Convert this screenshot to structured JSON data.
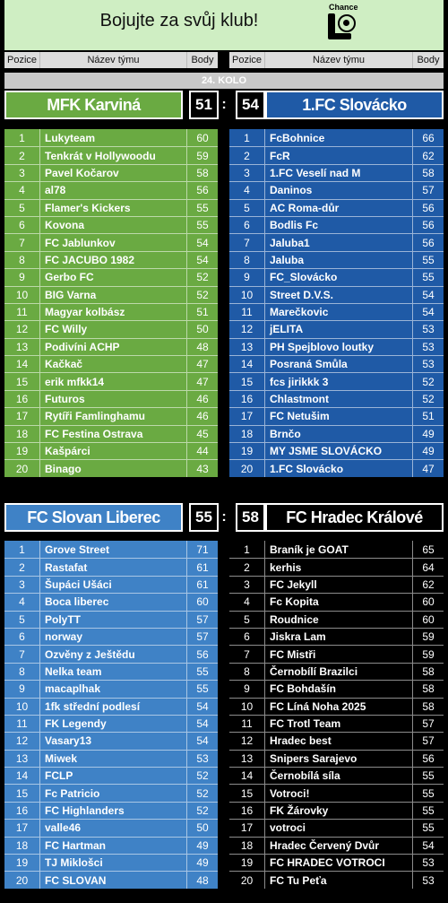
{
  "banner": {
    "text": "Bojujte za svůj klub!",
    "logo_word": "Chance"
  },
  "headers": {
    "pos": "Pozice",
    "name": "Název týmu",
    "pts": "Body"
  },
  "round_label": "24. KOLO",
  "colors": {
    "karvina": "#6aaa42",
    "slovacko": "#1f5aa6",
    "liberec": "#3f82c6",
    "hradec": "#000000"
  },
  "matches": [
    {
      "home": {
        "name": "MFK Karviná",
        "score": "51"
      },
      "away": {
        "name": "1.FC Slovácko",
        "score": "54"
      },
      "home_rows": [
        [
          "1",
          "Lukyteam",
          "60"
        ],
        [
          "2",
          "Tenkrát v Hollywoodu",
          "59"
        ],
        [
          "3",
          "Pavel Kočarov",
          "58"
        ],
        [
          "4",
          "al78",
          "56"
        ],
        [
          "5",
          "Flamer's Kickers",
          "55"
        ],
        [
          "6",
          "Kovona",
          "55"
        ],
        [
          "7",
          "FC Jablunkov",
          "54"
        ],
        [
          "8",
          "FC JACUBO 1982",
          "54"
        ],
        [
          "9",
          "Gerbo FC",
          "52"
        ],
        [
          "10",
          "BIG Varna",
          "52"
        ],
        [
          "11",
          "Magyar kolbász",
          "51"
        ],
        [
          "12",
          "FC Willy",
          "50"
        ],
        [
          "13",
          "Podivíni ACHP",
          "48"
        ],
        [
          "14",
          "Kačkač",
          "47"
        ],
        [
          "15",
          "erik mfkk14",
          "47"
        ],
        [
          "16",
          "Futuros",
          "46"
        ],
        [
          "17",
          "Rytíři Famlinghamu",
          "46"
        ],
        [
          "18",
          "FC Festina Ostrava",
          "45"
        ],
        [
          "19",
          "Kašpárci",
          "44"
        ],
        [
          "20",
          "Binago",
          "43"
        ]
      ],
      "away_rows": [
        [
          "1",
          "FcBohnice",
          "66"
        ],
        [
          "2",
          "FcR",
          "62"
        ],
        [
          "3",
          "1.FC Veselí nad M",
          "58"
        ],
        [
          "4",
          "Daninos",
          "57"
        ],
        [
          "5",
          "AC Roma-důr",
          "56"
        ],
        [
          "6",
          "Bodlis Fc",
          "56"
        ],
        [
          "7",
          "Jaluba1",
          "56"
        ],
        [
          "8",
          "Jaluba",
          "55"
        ],
        [
          "9",
          "FC_Slovácko",
          "55"
        ],
        [
          "10",
          "Street D.V.S.",
          "54"
        ],
        [
          "11",
          "Marečkovic",
          "54"
        ],
        [
          "12",
          "jELITA",
          "53"
        ],
        [
          "13",
          "PH Spejblovo loutky",
          "53"
        ],
        [
          "14",
          "Posraná Smůla",
          "53"
        ],
        [
          "15",
          "fcs jirikkk 3",
          "52"
        ],
        [
          "16",
          "Chlastmont",
          "52"
        ],
        [
          "17",
          "FC Netušim",
          "51"
        ],
        [
          "18",
          "Brnčo",
          "49"
        ],
        [
          "19",
          "MY JSME SLOVÁCKO",
          "49"
        ],
        [
          "20",
          "1.FC Slovácko",
          "47"
        ]
      ]
    },
    {
      "home": {
        "name": "FC Slovan Liberec",
        "score": "55"
      },
      "away": {
        "name": "FC Hradec Králové",
        "score": "58"
      },
      "home_rows": [
        [
          "1",
          "Grove Street",
          "71"
        ],
        [
          "2",
          "Rastafat",
          "61"
        ],
        [
          "3",
          "Šupáci Ušáci",
          "61"
        ],
        [
          "4",
          "Boca liberec",
          "60"
        ],
        [
          "5",
          "PolyTT",
          "57"
        ],
        [
          "6",
          "norway",
          "57"
        ],
        [
          "7",
          "Ozvěny z Ještědu",
          "56"
        ],
        [
          "8",
          "Nelka team",
          "55"
        ],
        [
          "9",
          "macaplhak",
          "55"
        ],
        [
          "10",
          "1fk střední podlesí",
          "54"
        ],
        [
          "11",
          "FK Legendy",
          "54"
        ],
        [
          "12",
          "Vasary13",
          "54"
        ],
        [
          "13",
          "Miwek",
          "53"
        ],
        [
          "14",
          "FCLP",
          "52"
        ],
        [
          "15",
          "Fc Patricio",
          "52"
        ],
        [
          "16",
          "FC Highlanders",
          "52"
        ],
        [
          "17",
          "valle46",
          "50"
        ],
        [
          "18",
          "FC Hartman",
          "49"
        ],
        [
          "19",
          "TJ Miklošci",
          "49"
        ],
        [
          "20",
          "FC SLOVAN",
          "48"
        ]
      ],
      "away_rows": [
        [
          "1",
          "Braník je GOAT",
          "65"
        ],
        [
          "2",
          "kerhis",
          "64"
        ],
        [
          "3",
          "FC Jekyll",
          "62"
        ],
        [
          "4",
          "Fc Kopita",
          "60"
        ],
        [
          "5",
          "Roudnice",
          "60"
        ],
        [
          "6",
          "Jiskra Lam",
          "59"
        ],
        [
          "7",
          "FC Mistři",
          "59"
        ],
        [
          "8",
          "Černobílí Brazilci",
          "58"
        ],
        [
          "9",
          "FC Bohdašín",
          "58"
        ],
        [
          "10",
          "FC Líná Noha 2025",
          "58"
        ],
        [
          "11",
          "FC Trotl Team",
          "57"
        ],
        [
          "12",
          "Hradec best",
          "57"
        ],
        [
          "13",
          "Snipers Sarajevo",
          "56"
        ],
        [
          "14",
          "Černobílá síla",
          "55"
        ],
        [
          "15",
          "Votroci!",
          "55"
        ],
        [
          "16",
          "FK Žárovky",
          "55"
        ],
        [
          "17",
          "votroci",
          "55"
        ],
        [
          "18",
          "Hradec Červený Dvůr",
          "54"
        ],
        [
          "19",
          "FC HRADEC VOTROCI",
          "53"
        ],
        [
          "20",
          "FC Tu Peťa",
          "53"
        ]
      ]
    }
  ]
}
